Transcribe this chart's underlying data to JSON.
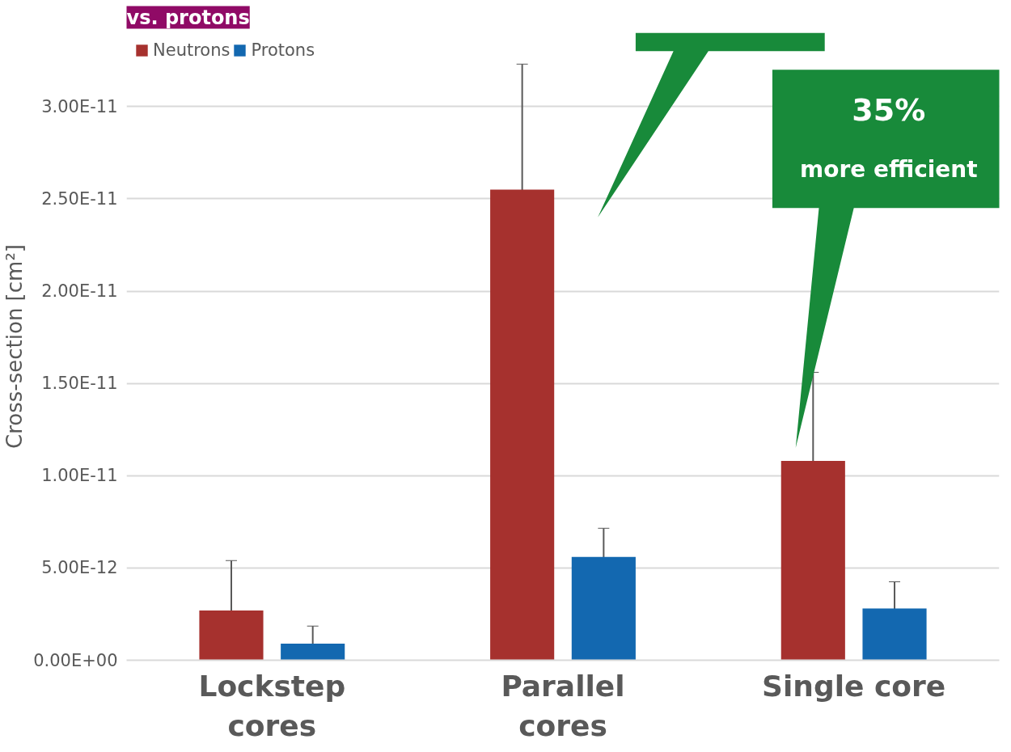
{
  "chart_data": {
    "type": "bar",
    "title": "vs. protons",
    "ylabel": "Cross-section [cm²]",
    "categories": [
      "Lockstep\ncores",
      "Parallel\ncores",
      "Single core"
    ],
    "series": [
      {
        "name": "Neutrons",
        "color": "#a6312e",
        "values": [
          2.7e-12,
          2.55e-11,
          1.08e-11
        ],
        "errors": [
          2.7e-12,
          6.8e-12,
          4.8e-12
        ]
      },
      {
        "name": "Protons",
        "color": "#1368b0",
        "values": [
          9e-13,
          5.6e-12,
          2.8e-12
        ],
        "errors": [
          9.5e-13,
          1.55e-12,
          1.45e-12
        ]
      }
    ],
    "ylim": [
      0,
      3.4e-11
    ],
    "yticks": [
      {
        "value": 0,
        "label": "0.00E+00"
      },
      {
        "value": 5e-12,
        "label": "5.00E-12"
      },
      {
        "value": 1e-11,
        "label": "1.00E-11"
      },
      {
        "value": 1.5e-11,
        "label": "1.50E-11"
      },
      {
        "value": 2e-11,
        "label": "2.00E-11"
      },
      {
        "value": 2.5e-11,
        "label": "2.50E-11"
      },
      {
        "value": 3e-11,
        "label": "3.00E-11"
      }
    ],
    "grid": "y",
    "legend": "top",
    "annotations": [
      "35%\nmore efficient"
    ]
  }
}
